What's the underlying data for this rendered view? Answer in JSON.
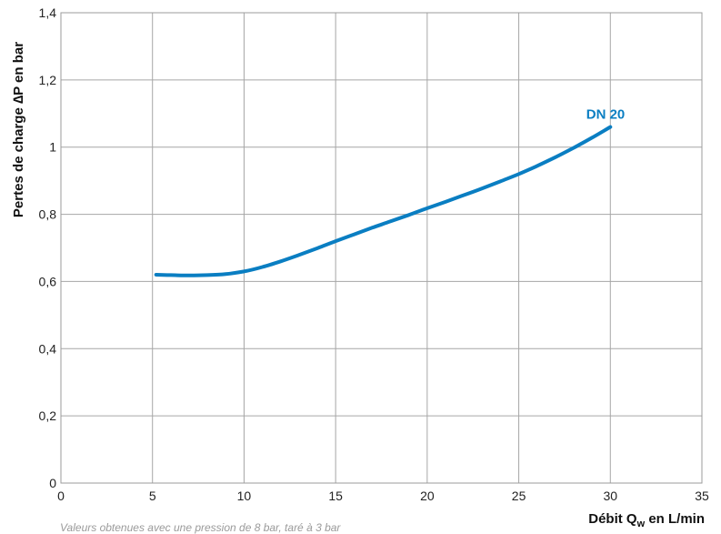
{
  "chart_data": {
    "type": "line",
    "xlabel": {
      "prefix": "Débit Q",
      "sub": "w",
      "suffix": " en L/min"
    },
    "ylabel": "Pertes de charge ∆P en bar",
    "xlim": [
      0,
      35
    ],
    "ylim": [
      0,
      1.4
    ],
    "x_ticks": [
      {
        "value": 0,
        "label": "0"
      },
      {
        "value": 5,
        "label": "5"
      },
      {
        "value": 10,
        "label": "10"
      },
      {
        "value": 15,
        "label": "15"
      },
      {
        "value": 20,
        "label": "20"
      },
      {
        "value": 25,
        "label": "25"
      },
      {
        "value": 30,
        "label": "30"
      },
      {
        "value": 35,
        "label": "35"
      }
    ],
    "y_ticks": [
      {
        "value": 0,
        "label": "0"
      },
      {
        "value": 0.2,
        "label": "0,2"
      },
      {
        "value": 0.4,
        "label": "0,4"
      },
      {
        "value": 0.6,
        "label": "0,6"
      },
      {
        "value": 0.8,
        "label": "0,8"
      },
      {
        "value": 1.0,
        "label": "1"
      },
      {
        "value": 1.2,
        "label": "1,2"
      },
      {
        "value": 1.4,
        "label": "1,4"
      }
    ],
    "grid": true,
    "series": [
      {
        "name": "DN 20",
        "color": "#0a7ec2",
        "x": [
          5.2,
          6,
          7,
          8,
          9,
          10,
          11,
          12,
          13,
          14,
          15,
          16,
          17,
          18,
          19,
          20,
          21,
          22,
          23,
          24,
          25,
          26,
          27,
          28,
          29,
          30
        ],
        "y": [
          0.62,
          0.619,
          0.618,
          0.619,
          0.622,
          0.63,
          0.643,
          0.66,
          0.679,
          0.699,
          0.72,
          0.74,
          0.76,
          0.779,
          0.798,
          0.818,
          0.837,
          0.857,
          0.877,
          0.898,
          0.92,
          0.944,
          0.97,
          0.998,
          1.028,
          1.06
        ]
      }
    ]
  },
  "footnote": "Valeurs obtenues avec une pression de 8 bar, taré à 3 bar"
}
